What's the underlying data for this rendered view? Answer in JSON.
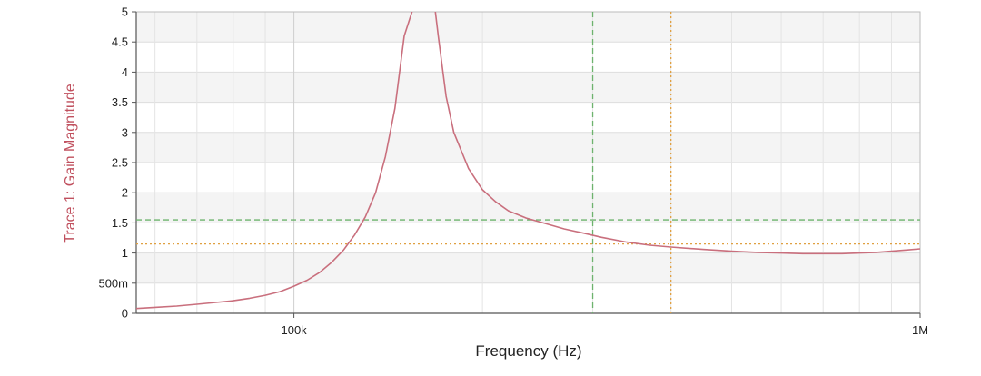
{
  "chart_data": {
    "type": "line",
    "xlabel": "Frequency (Hz)",
    "ylabel": "Trace 1: Gain Magnitude",
    "x_scale": "log",
    "xlim": [
      56000,
      1000000
    ],
    "ylim": [
      0,
      5
    ],
    "y_ticks": [
      "0",
      "500m",
      "1",
      "1.5",
      "2",
      "2.5",
      "3",
      "3.5",
      "4",
      "4.5",
      "5"
    ],
    "x_ticks": [
      "100k",
      "1M"
    ],
    "grid": true,
    "colors": {
      "trace": "#c96f7d",
      "ylabel": "#c0505e",
      "cursor_a": "#6db36d",
      "cursor_b": "#e0a040"
    },
    "series": [
      {
        "name": "Trace 1: Gain Magnitude",
        "x": [
          56000,
          60000,
          65000,
          70000,
          75000,
          80000,
          85000,
          90000,
          95000,
          100000,
          105000,
          110000,
          115000,
          120000,
          125000,
          130000,
          135000,
          140000,
          145000,
          150000,
          160000,
          166000,
          170000,
          175000,
          180000,
          190000,
          200000,
          210000,
          220000,
          235000,
          250000,
          270000,
          290000,
          310000,
          340000,
          370000,
          400000,
          450000,
          500000,
          550000,
          600000,
          650000,
          700000,
          750000,
          800000,
          850000,
          900000,
          950000,
          1000000
        ],
        "y": [
          0.08,
          0.1,
          0.12,
          0.15,
          0.18,
          0.21,
          0.25,
          0.3,
          0.36,
          0.45,
          0.55,
          0.68,
          0.85,
          1.05,
          1.3,
          1.6,
          2.0,
          2.6,
          3.4,
          4.6,
          5.5,
          5.5,
          4.6,
          3.6,
          3.0,
          2.4,
          2.05,
          1.85,
          1.7,
          1.58,
          1.5,
          1.4,
          1.33,
          1.26,
          1.18,
          1.13,
          1.1,
          1.06,
          1.03,
          1.01,
          1.0,
          0.99,
          0.99,
          0.99,
          1.0,
          1.01,
          1.03,
          1.05,
          1.07
        ]
      }
    ],
    "cursors": [
      {
        "x": 300000,
        "y": 1.55
      },
      {
        "x": 400000,
        "y": 1.15
      }
    ]
  }
}
